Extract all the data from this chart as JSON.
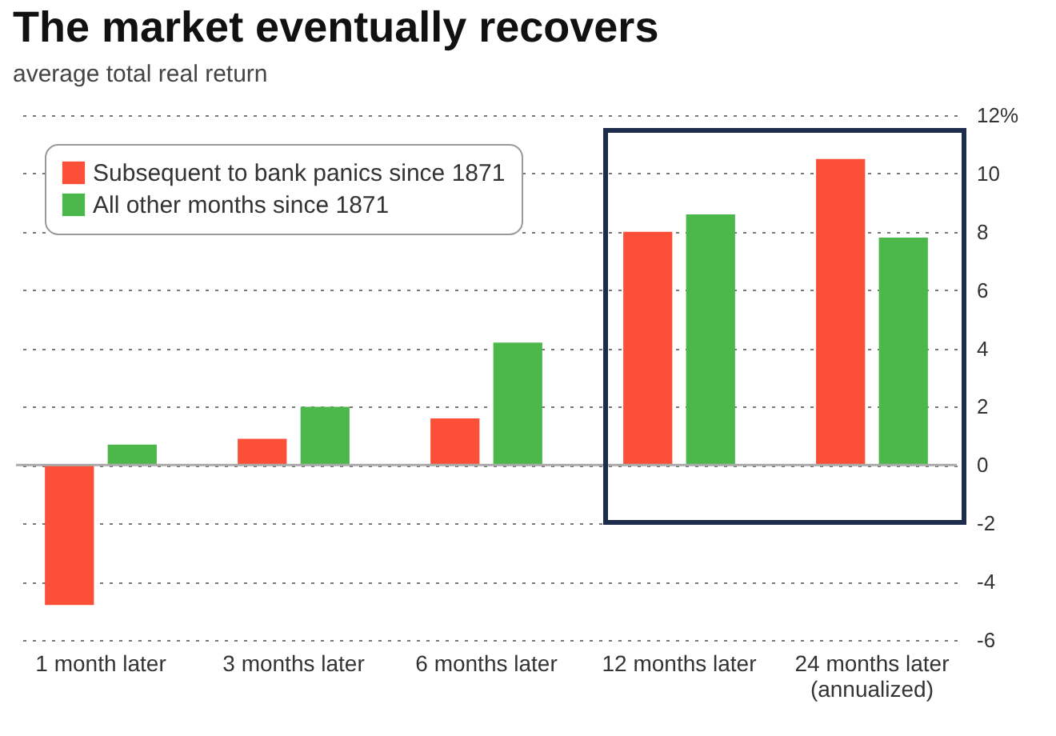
{
  "chart_data": {
    "type": "bar",
    "title": "The market eventually recovers",
    "subtitle": "average total real return",
    "categories": [
      "1 month later",
      "3 months later",
      "6 months later",
      "12 months later",
      "24 months later\n(annualized)"
    ],
    "series": [
      {
        "name": "Subsequent to bank panics since 1871",
        "color": "#fc4f37",
        "values": [
          -4.8,
          0.9,
          1.6,
          8.0,
          10.5
        ]
      },
      {
        "name": "All other months since 1871",
        "color": "#4cb84c",
        "values": [
          0.7,
          2.0,
          4.2,
          8.6,
          7.8
        ]
      }
    ],
    "ylim": [
      -6,
      12
    ],
    "yticks": [
      -6,
      -4,
      -2,
      0,
      2,
      4,
      6,
      8,
      10,
      {
        "value": 12,
        "label": "12%"
      }
    ],
    "ref_lines": [
      {
        "axis": "y",
        "value": 0,
        "color": "#aaaaaa"
      }
    ],
    "grid": "y",
    "legend": "top left"
  }
}
